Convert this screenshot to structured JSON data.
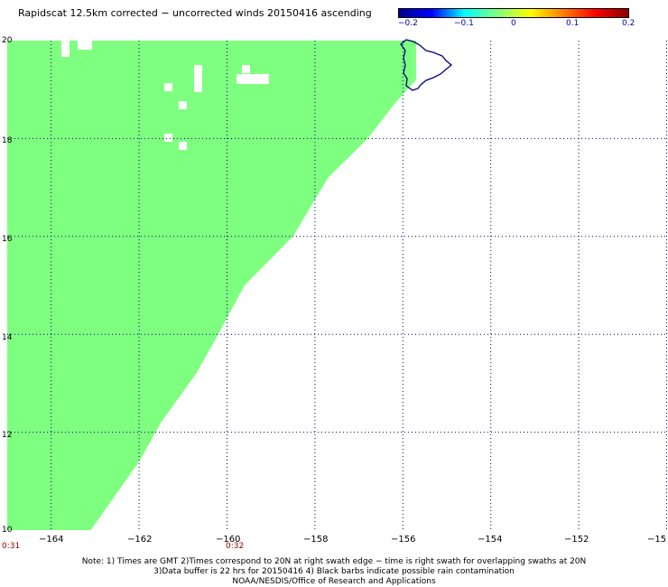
{
  "title": "Rapidscat 12.5km corrected − uncorrected winds 20150416 ascending",
  "colorbar": {
    "ticks": [
      "−0.2",
      "−0.1",
      "0",
      "0.1",
      "0.2"
    ],
    "range": [
      -0.2,
      0.2
    ],
    "stops": [
      "#00008b",
      "#0000ff",
      "#00ffff",
      "#7fff7f",
      "#ffff00",
      "#ff7f00",
      "#ff0000",
      "#8b0000"
    ]
  },
  "axes": {
    "lat_ticks": [
      "20",
      "18",
      "16",
      "14",
      "12",
      "10"
    ],
    "lon_ticks": [
      "−164",
      "−162",
      "−160",
      "−158",
      "−156",
      "−154",
      "−152",
      "−15"
    ],
    "lat_range": [
      10,
      20
    ],
    "lon_range": [
      -165,
      -150
    ],
    "grid": "dotted"
  },
  "swath": {
    "value": 0,
    "color": "#7fff7f",
    "edge": [
      [
        10,
        -163.1
      ],
      [
        11.4,
        -162.0
      ],
      [
        12.2,
        -161.5
      ],
      [
        13.2,
        -160.7
      ],
      [
        14.0,
        -160.2
      ],
      [
        15.0,
        -159.6
      ],
      [
        16.0,
        -158.5
      ],
      [
        17.2,
        -157.7
      ],
      [
        18.0,
        -156.8
      ],
      [
        18.7,
        -156.2
      ],
      [
        19.2,
        -155.7
      ]
    ]
  },
  "coastline": {
    "color": "#000080",
    "name": "Hawaii"
  },
  "times": [
    {
      "label": "0:31"
    },
    {
      "label": "0:32"
    }
  ],
  "notes": [
    "Note: 1) Times are GMT 2)Times correspond to 20N at right swath edge − time is right swath for overlapping swaths at 20N",
    "3)Data buffer is 22 hrs for 20150416 4) Black barbs indicate possible rain contamination",
    "NOAA/NESDIS/Office of Research and Applications"
  ]
}
